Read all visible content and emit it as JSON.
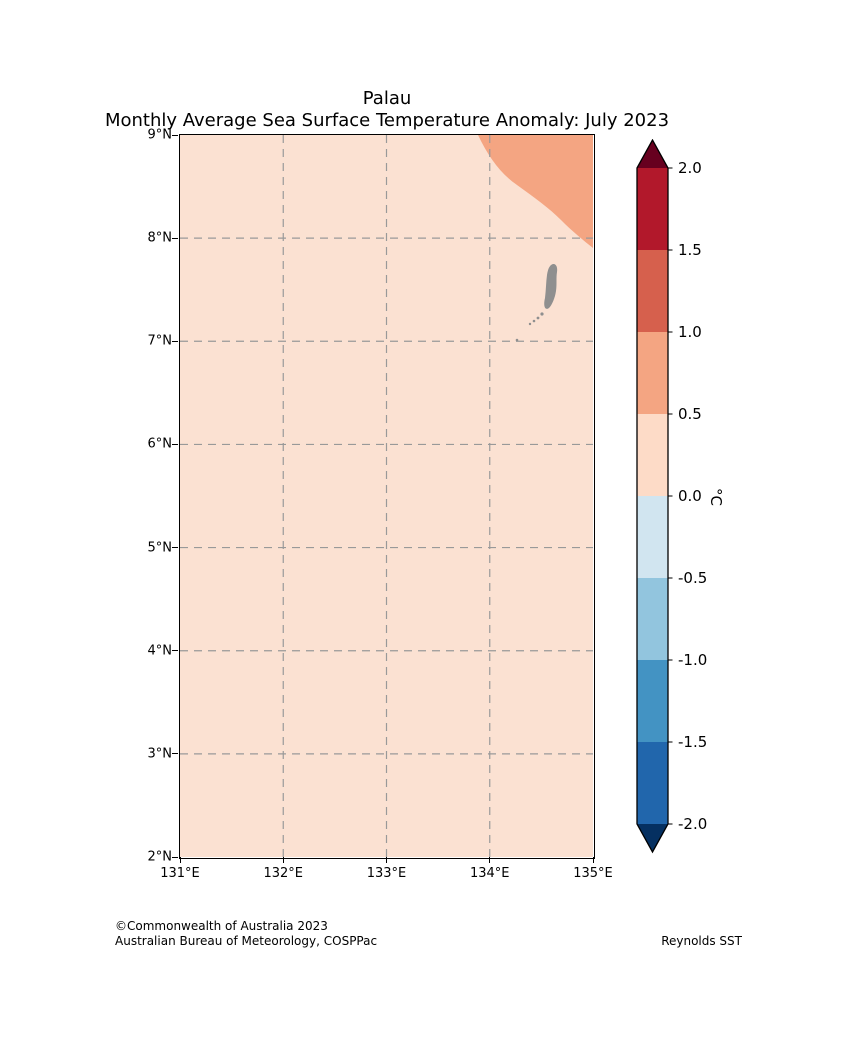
{
  "title": {
    "line1": "Palau",
    "line2": "Monthly Average Sea Surface Temperature Anomaly: July 2023"
  },
  "footer": {
    "copyright": "©Commonwealth of Australia 2023",
    "agency": "Australian Bureau of Meteorology, COSPPac",
    "source": "Reynolds SST"
  },
  "chart_data": {
    "type": "heatmap",
    "title": "Palau",
    "subtitle": "Monthly Average Sea Surface Temperature Anomaly: July 2023",
    "region": "Palau",
    "month": "July 2023",
    "x_ticks": [
      "131°E",
      "132°E",
      "133°E",
      "134°E",
      "135°E"
    ],
    "y_ticks": [
      "9°N",
      "8°N",
      "7°N",
      "6°N",
      "5°N",
      "4°N",
      "3°N",
      "2°N"
    ],
    "x_range_deg_east": [
      131,
      135
    ],
    "y_range_deg_north": [
      2,
      9
    ],
    "grid": "dashed",
    "values": {
      "most_of_region_anomaly_c": "0.0 to 0.5",
      "northeast_corner_anomaly_c": "0.5 to 1.0",
      "land_feature": "Palau islands near 134.5°E, 7.0–7.75°N"
    },
    "colors": {
      "sea_background": "#fbe1d2",
      "northeast_corner": "#f4a582",
      "land": "#8f8f8f",
      "grid": "#999999"
    },
    "colorbar": {
      "label": "°C",
      "tick_labels": [
        "2.0",
        "1.5",
        "1.0",
        "0.5",
        "0.0",
        "-0.5",
        "-1.0",
        "-1.5",
        "-2.0"
      ],
      "segments_top_to_bottom": [
        "#b2182b",
        "#d6604d",
        "#f4a582",
        "#fddbc7",
        "#d1e5f0",
        "#92c5de",
        "#4393c3",
        "#2166ac"
      ],
      "over_arrow_color": "#67001f",
      "under_arrow_color": "#053061"
    }
  }
}
